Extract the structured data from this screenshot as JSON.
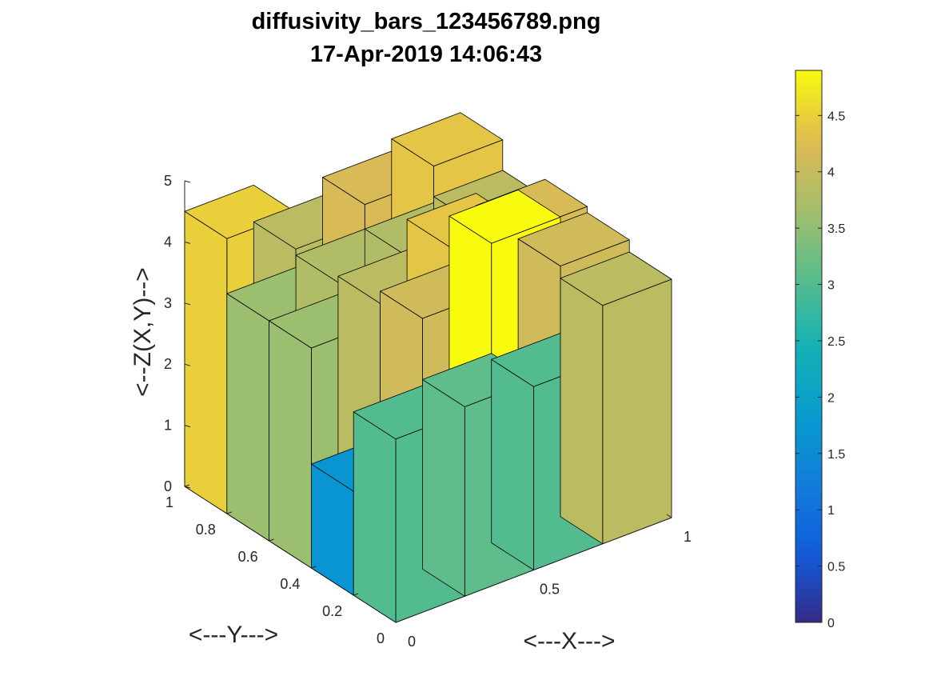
{
  "title_line1": "diffusivity_bars_123456789.png",
  "title_line2": "17-Apr-2019 14:06:43",
  "chart_data": {
    "type": "bar3",
    "title": "diffusivity_bars_123456789.png",
    "subtitle": "17-Apr-2019 14:06:43",
    "xlabel": "<---X--->",
    "ylabel": "<---Y--->",
    "zlabel": "<--Z(X,Y)-->",
    "x_ticks": [
      "0",
      "0.5",
      "1"
    ],
    "y_ticks": [
      "0",
      "0.2",
      "0.4",
      "0.6",
      "0.8",
      "1"
    ],
    "z_ticks": [
      "0",
      "1",
      "2",
      "3",
      "4",
      "5"
    ],
    "xlim": [
      0,
      1
    ],
    "ylim": [
      0,
      1
    ],
    "zlim": [
      0,
      5
    ],
    "bars_row_y_centers": [
      0.1,
      0.3,
      0.5,
      0.7,
      0.9
    ],
    "bars_col_x_centers": [
      0.125,
      0.375,
      0.625,
      0.875
    ],
    "z_values": [
      [
        3.0,
        3.1,
        3.0,
        3.9
      ],
      [
        1.7,
        4.1,
        4.9,
        4.1
      ],
      [
        3.6,
        3.9,
        4.4,
        4.2
      ],
      [
        3.6,
        3.8,
        3.8,
        3.9
      ],
      [
        4.5,
        3.9,
        4.2,
        4.4
      ]
    ],
    "colorbar": {
      "min": 0,
      "max": 4.9,
      "ticks": [
        "0",
        "0.5",
        "1",
        "1.5",
        "2",
        "2.5",
        "3",
        "3.5",
        "4",
        "4.5"
      ],
      "colormap": "parula"
    },
    "grid": false
  }
}
